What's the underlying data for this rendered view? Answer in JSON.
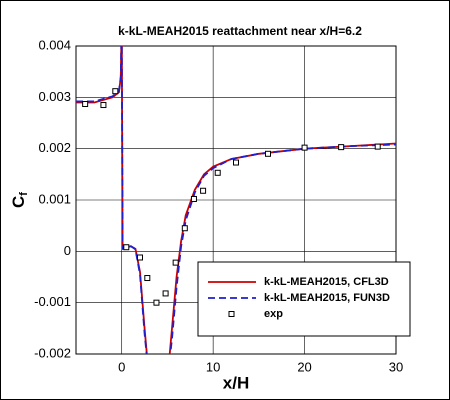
{
  "chart_data": {
    "type": "line",
    "title": "k-kL-MEAH2015 reattachment near x/H=6.2",
    "xlabel": "x/H",
    "ylabel": "C",
    "ylabel_subscript": "f",
    "xlim": [
      -5,
      30
    ],
    "ylim": [
      -0.002,
      0.004
    ],
    "xticks": [
      0,
      10,
      20,
      30
    ],
    "yticks": [
      -0.002,
      -0.001,
      0,
      0.001,
      0.002,
      0.003,
      0.004
    ],
    "grid": true,
    "legend": "lower right",
    "series": [
      {
        "name": "k-kL-MEAH2015, CFL3D",
        "color": "#cc0000",
        "style": "solid",
        "x": [
          -5,
          -3,
          -1,
          -0.3,
          -0.1,
          0,
          0.1,
          1,
          1.5,
          2,
          2.5,
          3,
          5,
          5.5,
          6,
          6.5,
          7,
          8,
          9,
          10,
          12,
          15,
          20,
          25,
          30
        ],
        "values": [
          0.0029,
          0.0029,
          0.003,
          0.0031,
          0.0034,
          0.0045,
          5e-05,
          0.0001,
          5e-05,
          -0.0004,
          -0.0015,
          -0.0025,
          -0.0025,
          -0.0015,
          -0.0005,
          0.0002,
          0.0007,
          0.0012,
          0.0015,
          0.00165,
          0.0018,
          0.0019,
          0.002,
          0.00205,
          0.0021
        ]
      },
      {
        "name": "k-kL-MEAH2015, FUN3D",
        "color": "#1f1fcc",
        "style": "dashed",
        "x": [
          -5,
          -3,
          -1,
          -0.3,
          -0.1,
          0,
          0.1,
          1,
          1.5,
          2,
          2.5,
          3,
          5,
          5.5,
          6,
          6.5,
          7,
          8,
          9,
          10,
          12,
          15,
          20,
          25,
          30
        ],
        "values": [
          0.00292,
          0.00292,
          0.00302,
          0.00312,
          0.0034,
          0.0045,
          5e-05,
          0.0001,
          4e-05,
          -0.00045,
          -0.0016,
          -0.0025,
          -0.0025,
          -0.0017,
          -0.0007,
          0.0001,
          0.0006,
          0.00115,
          0.00147,
          0.00162,
          0.0018,
          0.0019,
          0.002,
          0.00205,
          0.00208
        ]
      },
      {
        "name": "exp",
        "color": "#000000",
        "style": "marker",
        "x": [
          -4,
          -2,
          -0.7,
          0.5,
          2,
          2.8,
          3.8,
          4.8,
          5.9,
          6.9,
          7.9,
          8.9,
          10.5,
          12.5,
          16,
          20,
          24,
          28
        ],
        "values": [
          0.00287,
          0.00285,
          0.00312,
          8e-05,
          -0.00012,
          -0.00052,
          -0.001,
          -0.00082,
          -0.00022,
          0.00045,
          0.00102,
          0.00118,
          0.00153,
          0.00173,
          0.0019,
          0.00202,
          0.00203,
          0.00204
        ]
      }
    ]
  }
}
